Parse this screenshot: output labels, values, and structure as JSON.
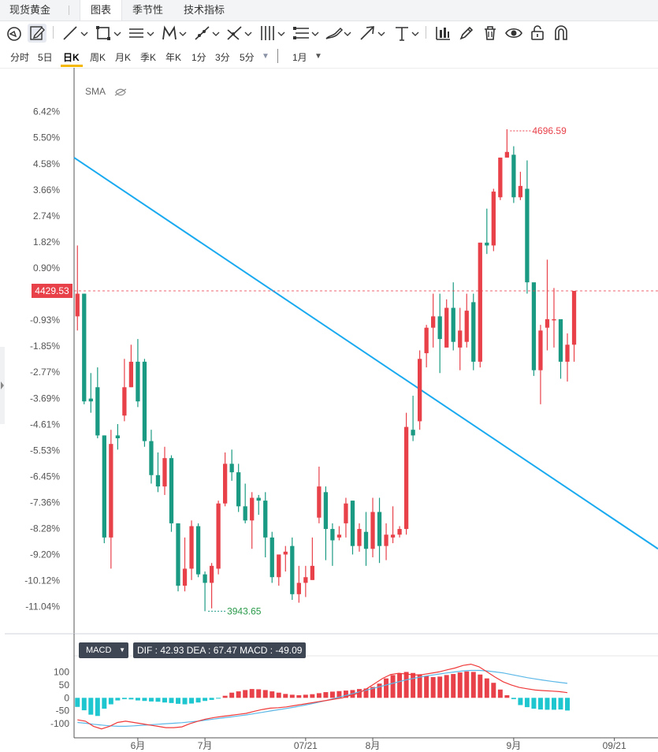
{
  "header": {
    "title": "现货黄金",
    "tabs": [
      {
        "label": "图表",
        "active": true
      },
      {
        "label": "季节性",
        "active": false
      },
      {
        "label": "技术指标",
        "active": false
      }
    ]
  },
  "toolbar": {
    "icons": [
      "cursor-icon",
      "pen-edit-icon",
      "line-icon",
      "rectangle-icon",
      "parallel-lines-icon",
      "pattern-icon",
      "ray-icon",
      "fork-icon",
      "fib-icon",
      "channel-icon",
      "brush-icon",
      "arrow-icon",
      "text-icon",
      "bars-icon",
      "pencil-icon",
      "trash-icon",
      "eye-icon",
      "lock-icon",
      "magnet-icon"
    ]
  },
  "periods": {
    "items": [
      "分时",
      "5日",
      "日K",
      "周K",
      "月K",
      "季K",
      "年K",
      "1分",
      "3分",
      "5分"
    ],
    "active": "日K",
    "range_label": "1月"
  },
  "colors": {
    "up": "#e8414a",
    "down": "#1a9a82",
    "trendline": "#1aaaf0",
    "dif": "#f03a3a",
    "dea": "#5cb8e8",
    "price_tag": "#e8414a"
  },
  "chart_data": {
    "type": "candlestick",
    "indicator_label": "SMA",
    "current_price": "4429.53",
    "high_marker": "4696.59",
    "low_marker": "3943.65",
    "y_axis": {
      "tick_labels": [
        "6.42%",
        "5.50%",
        "4.58%",
        "3.66%",
        "2.74%",
        "1.82%",
        "0.90%",
        "-0.93%",
        "-1.85%",
        "-2.77%",
        "-3.69%",
        "-4.61%",
        "-5.53%",
        "-6.45%",
        "-7.36%",
        "-8.28%",
        "-9.20%",
        "-10.12%",
        "-11.04%"
      ],
      "ticks": [
        6.42,
        5.5,
        4.58,
        3.66,
        2.74,
        1.82,
        0.9,
        -0.93,
        -1.85,
        -2.77,
        -3.69,
        -4.61,
        -5.53,
        -6.45,
        -7.36,
        -8.28,
        -9.2,
        -10.12,
        -11.04
      ],
      "range": [
        7.3,
        -11.94
      ],
      "unit": "%"
    },
    "x_axis": {
      "labels": [
        {
          "text": "6月",
          "index": 9
        },
        {
          "text": "7月",
          "index": 19
        },
        {
          "text": "07/21",
          "index": 34
        },
        {
          "text": "8月",
          "index": 44
        },
        {
          "text": "9月",
          "index": 65
        },
        {
          "text": "09/21",
          "index": 80
        }
      ],
      "first_index": -0.5,
      "last_index": 86.5
    },
    "candles": [
      [
        -0.8,
        0.0,
        1.7,
        -1.3
      ],
      [
        0.0,
        -3.8,
        0.0,
        -3.9
      ],
      [
        -3.7,
        -3.8,
        -2.8,
        -4.2
      ],
      [
        -3.3,
        -5.0,
        -2.6,
        -5.1
      ],
      [
        -5.0,
        -8.6,
        -5.0,
        -8.8
      ],
      [
        -8.6,
        -5.3,
        -4.8,
        -9.7
      ],
      [
        -5.0,
        -5.1,
        -4.6,
        -5.5
      ],
      [
        -4.3,
        -3.3,
        -2.3,
        -4.5
      ],
      [
        -3.3,
        -2.4,
        -1.8,
        -3.3
      ],
      [
        -2.4,
        -3.8,
        -1.6,
        -4.0
      ],
      [
        -2.4,
        -5.2,
        -2.3,
        -5.4
      ],
      [
        -5.2,
        -6.4,
        -4.8,
        -6.7
      ],
      [
        -6.4,
        -6.8,
        -5.6,
        -7.0
      ],
      [
        -6.8,
        -5.8,
        -5.4,
        -7.1
      ],
      [
        -5.8,
        -8.1,
        -5.7,
        -8.4
      ],
      [
        -8.1,
        -10.3,
        -8.1,
        -10.5
      ],
      [
        -10.3,
        -9.7,
        -8.6,
        -10.5
      ],
      [
        -9.7,
        -8.2,
        -8.0,
        -10.1
      ],
      [
        -8.2,
        -9.9,
        -8.1,
        -10.0
      ],
      [
        -9.9,
        -10.2,
        -9.8,
        -11.2
      ],
      [
        -10.2,
        -9.6,
        -9.5,
        -11.1
      ],
      [
        -9.7,
        -7.4,
        -7.3,
        -9.9
      ],
      [
        -7.4,
        -6.0,
        -5.6,
        -7.5
      ],
      [
        -6.0,
        -6.3,
        -5.5,
        -6.6
      ],
      [
        -6.3,
        -7.5,
        -6.0,
        -7.7
      ],
      [
        -7.5,
        -8.0,
        -6.7,
        -8.1
      ],
      [
        -8.0,
        -7.2,
        -7.0,
        -9.0
      ],
      [
        -7.2,
        -7.3,
        -7.1,
        -7.8
      ],
      [
        -7.3,
        -8.6,
        -7.0,
        -9.3
      ],
      [
        -8.6,
        -10.0,
        -8.4,
        -10.2
      ],
      [
        -10.0,
        -9.2,
        -9.2,
        -10.3
      ],
      [
        -9.2,
        -9.1,
        -8.9,
        -9.8
      ],
      [
        -8.9,
        -10.6,
        -8.6,
        -10.8
      ],
      [
        -10.6,
        -10.2,
        -9.6,
        -10.9
      ],
      [
        -10.2,
        -10.0,
        -9.6,
        -10.7
      ],
      [
        -10.1,
        -9.6,
        -8.6,
        -10.1
      ],
      [
        -7.9,
        -6.8,
        -6.1,
        -8.1
      ],
      [
        -7.0,
        -8.3,
        -6.8,
        -9.4
      ],
      [
        -8.3,
        -8.7,
        -8.1,
        -9.6
      ],
      [
        -8.6,
        -8.5,
        -8.2,
        -8.7
      ],
      [
        -8.1,
        -7.4,
        -7.2,
        -8.6
      ],
      [
        -7.3,
        -8.9,
        -7.3,
        -9.2
      ],
      [
        -8.9,
        -8.3,
        -8.1,
        -9.1
      ],
      [
        -8.4,
        -9.0,
        -7.7,
        -9.6
      ],
      [
        -9.0,
        -7.7,
        -7.2,
        -9.3
      ],
      [
        -7.7,
        -8.9,
        -7.2,
        -9.5
      ],
      [
        -8.9,
        -8.5,
        -8.1,
        -9.4
      ],
      [
        -8.6,
        -8.5,
        -7.5,
        -8.8
      ],
      [
        -8.5,
        -8.3,
        -8.2,
        -8.6
      ],
      [
        -8.3,
        -4.7,
        -4.2,
        -8.5
      ],
      [
        -4.8,
        -5.0,
        -3.6,
        -5.2
      ],
      [
        -4.5,
        -2.3,
        -2.0,
        -4.8
      ],
      [
        -2.1,
        -1.2,
        -1.1,
        -2.6
      ],
      [
        -1.2,
        -0.8,
        0.0,
        -1.9
      ],
      [
        -0.8,
        -1.6,
        0.0,
        -2.8
      ],
      [
        -1.9,
        -0.5,
        -0.2,
        -1.9
      ],
      [
        -0.5,
        -1.7,
        0.4,
        -2.0
      ],
      [
        -1.9,
        -1.3,
        -0.5,
        -2.7
      ],
      [
        -1.7,
        -0.6,
        0.0,
        -1.9
      ],
      [
        -0.3,
        -2.4,
        0.0,
        -2.7
      ],
      [
        -2.4,
        1.8,
        1.8,
        -2.6
      ],
      [
        1.8,
        1.7,
        3.0,
        1.4
      ],
      [
        1.7,
        3.6,
        3.7,
        1.5
      ],
      [
        3.4,
        4.8,
        4.8,
        3.3
      ],
      [
        4.8,
        5.0,
        5.8,
        4.8
      ],
      [
        4.9,
        3.4,
        5.2,
        3.2
      ],
      [
        3.4,
        3.8,
        4.3,
        3.3
      ],
      [
        3.7,
        0.4,
        4.7,
        0.0
      ],
      [
        0.4,
        -2.7,
        0.2,
        -2.9
      ],
      [
        -2.7,
        -1.3,
        -1.1,
        -3.9
      ],
      [
        -1.2,
        -0.9,
        1.2,
        -2.0
      ],
      [
        -0.9,
        -0.9,
        0.2,
        -1.9
      ],
      [
        -0.9,
        -2.4,
        -1.5,
        -3.0
      ],
      [
        -2.4,
        -1.8,
        -1.4,
        -3.1
      ],
      [
        -1.8,
        0.1,
        -0.5,
        -2.4
      ]
    ],
    "trendline": {
      "x0": 0,
      "y0": 4.8,
      "x1": 86.5,
      "y1": -9.0
    },
    "macd": {
      "label": "MACD",
      "values_text": "DIF : 42.93   DEA : 67.47   MACD : -49.09",
      "dif": 42.93,
      "dea": 67.47,
      "macd_value": -49.09,
      "ticks": [
        100,
        50,
        0,
        -50,
        -100
      ],
      "range": [
        150,
        -130
      ],
      "histogram": [
        -35,
        -48,
        -65,
        -70,
        -42,
        -25,
        -10,
        -5,
        -6,
        -10,
        -12,
        -14,
        -15,
        -18,
        -20,
        -23,
        -25,
        -22,
        -18,
        -12,
        -8,
        -3,
        8,
        20,
        25,
        30,
        34,
        33,
        30,
        25,
        20,
        15,
        12,
        10,
        12,
        14,
        18,
        22,
        24,
        26,
        28,
        30,
        34,
        36,
        42,
        55,
        75,
        88,
        95,
        100,
        96,
        90,
        85,
        80,
        82,
        88,
        92,
        98,
        102,
        100,
        90,
        75,
        58,
        32,
        10,
        -5,
        -28,
        -36,
        -42,
        -45,
        -46,
        -46,
        -45,
        -49
      ],
      "dif_line": [
        -85,
        -90,
        -110,
        -120,
        -110,
        -95,
        -90,
        -95,
        -100,
        -105,
        -110,
        -115,
        -115,
        -112,
        -100,
        -90,
        -82,
        -76,
        -72,
        -68,
        -64,
        -60,
        -52,
        -45,
        -40,
        -38,
        -35,
        -30,
        -25,
        -20,
        -15,
        -10,
        -5,
        0,
        10,
        18,
        35,
        55,
        75,
        90,
        95,
        92,
        88,
        90,
        95,
        100,
        108,
        115,
        125,
        130,
        120,
        100,
        80,
        62,
        50,
        40,
        35,
        30,
        28,
        26,
        24,
        20
      ],
      "dea_line": [
        -95,
        -98,
        -102,
        -105,
        -108,
        -110,
        -110,
        -108,
        -106,
        -104,
        -102,
        -100,
        -98,
        -96,
        -93,
        -90,
        -86,
        -82,
        -78,
        -74,
        -70,
        -66,
        -61,
        -56,
        -51,
        -46,
        -41,
        -36,
        -30,
        -24,
        -17,
        -10,
        -2,
        6,
        14,
        22,
        30,
        38,
        46,
        54,
        62,
        70,
        76,
        82,
        87,
        92,
        96,
        100,
        104,
        106,
        106,
        104,
        100,
        96,
        90,
        84,
        78,
        73,
        68,
        64,
        60,
        56
      ]
    }
  }
}
